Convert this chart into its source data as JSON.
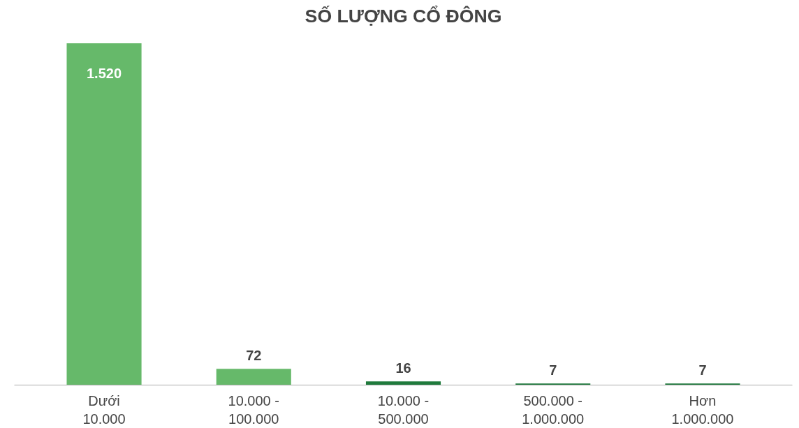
{
  "chart_data": {
    "type": "bar",
    "title": "SỐ LƯỢNG CỔ ĐÔNG",
    "categories": [
      "Dưới\n10.000",
      "10.000 -\n100.000",
      "10.000 -\n500.000",
      "500.000 -\n1.000.000",
      "Hơn\n1.000.000"
    ],
    "values": [
      1520,
      72,
      16,
      7,
      7
    ],
    "colors": [
      "#66b96a",
      "#66b96a",
      "#1f7a3c",
      "#1f7a3c",
      "#1f7a3c"
    ],
    "value_labels": [
      "1.520",
      "72",
      "16",
      "7",
      "7"
    ],
    "grid": false
  }
}
